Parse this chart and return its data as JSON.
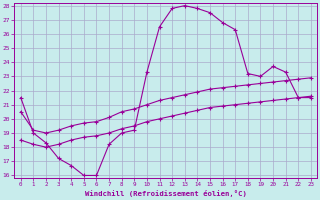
{
  "xlabel": "Windchill (Refroidissement éolien,°C)",
  "xlim": [
    0,
    23
  ],
  "ylim": [
    16,
    28
  ],
  "xticks": [
    0,
    1,
    2,
    3,
    4,
    5,
    6,
    7,
    8,
    9,
    10,
    11,
    12,
    13,
    14,
    15,
    16,
    17,
    18,
    19,
    20,
    21,
    22,
    23
  ],
  "yticks": [
    16,
    17,
    18,
    19,
    20,
    21,
    22,
    23,
    24,
    25,
    26,
    27,
    28
  ],
  "background_color": "#c8ecec",
  "line_color": "#990099",
  "grid_color": "#aaaacc",
  "curve1_x": [
    0,
    1,
    2,
    3,
    4,
    5,
    6,
    7,
    8,
    9,
    10,
    11,
    12,
    13,
    14,
    15,
    16,
    17,
    18,
    19,
    20,
    21,
    22,
    23
  ],
  "curve1_y": [
    21.5,
    19.0,
    18.3,
    17.2,
    16.7,
    16.0,
    16.0,
    18.2,
    19.0,
    19.2,
    23.3,
    26.5,
    27.8,
    28.0,
    27.8,
    27.5,
    26.8,
    26.3,
    23.2,
    23.0,
    23.7,
    23.3,
    21.5,
    21.5
  ],
  "curve2_x": [
    0,
    1,
    2,
    3,
    4,
    5,
    6,
    7,
    8,
    9,
    10,
    11,
    12,
    13,
    14,
    15,
    16,
    17,
    18,
    19,
    20,
    21,
    22,
    23
  ],
  "curve2_y": [
    20.5,
    19.2,
    19.0,
    19.2,
    19.5,
    19.7,
    19.8,
    20.1,
    20.5,
    20.7,
    21.0,
    21.3,
    21.5,
    21.7,
    21.9,
    22.1,
    22.2,
    22.3,
    22.4,
    22.5,
    22.6,
    22.7,
    22.8,
    22.9
  ],
  "curve3_x": [
    0,
    1,
    2,
    3,
    4,
    5,
    6,
    7,
    8,
    9,
    10,
    11,
    12,
    13,
    14,
    15,
    16,
    17,
    18,
    19,
    20,
    21,
    22,
    23
  ],
  "curve3_y": [
    18.5,
    18.2,
    18.0,
    18.2,
    18.5,
    18.7,
    18.8,
    19.0,
    19.3,
    19.5,
    19.8,
    20.0,
    20.2,
    20.4,
    20.6,
    20.8,
    20.9,
    21.0,
    21.1,
    21.2,
    21.3,
    21.4,
    21.5,
    21.6
  ]
}
